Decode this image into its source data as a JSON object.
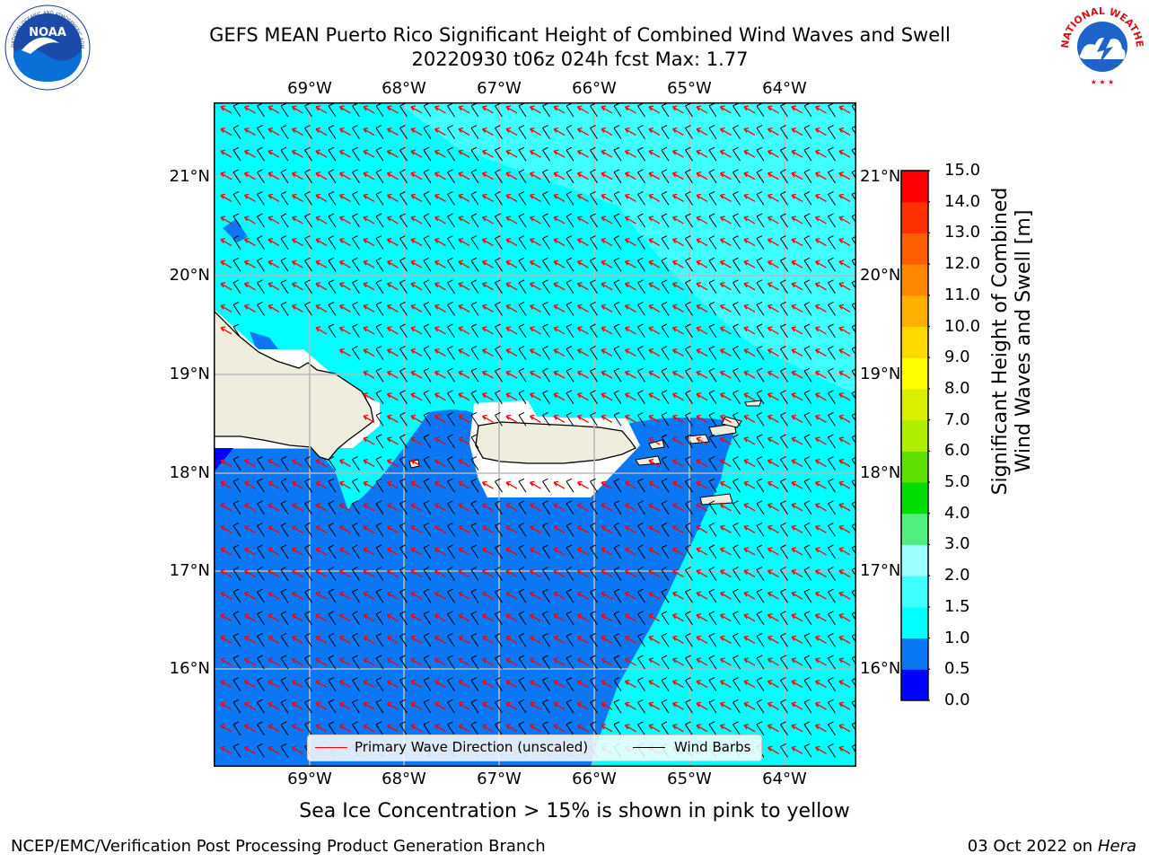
{
  "title_line1": "GEFS MEAN Puerto Rico Significant Height of Combined Wind Waves and Swell",
  "title_line2": "20220930 t06z 024h fcst   Max: 1.77",
  "logos": {
    "left": "noaa-logo",
    "right": "nws-logo",
    "noaa_text": "NOAA",
    "nws_text": "NATIONAL WEATHER SERVICE",
    "noaa_ring_text": "NATIONAL OCEANIC AND ATMOSPHERIC ADMINISTRATION · U.S. DEPARTMENT OF COMMERCE"
  },
  "lon_ticks": [
    "69°W",
    "68°W",
    "67°W",
    "66°W",
    "65°W",
    "64°W"
  ],
  "lat_ticks": [
    "21°N",
    "20°N",
    "19°N",
    "18°N",
    "17°N",
    "16°N"
  ],
  "map_extent": {
    "lon": [
      -70.0,
      -63.25
    ],
    "lat": [
      15.0,
      21.75
    ]
  },
  "colorbar": {
    "title_line1": "Significant Height of Combined",
    "title_line2": "Wind Waves and Swell [m]",
    "levels": [
      "0.0",
      "0.5",
      "1.0",
      "1.5",
      "2.0",
      "3.0",
      "4.0",
      "5.0",
      "6.0",
      "7.0",
      "8.0",
      "9.0",
      "10.0",
      "11.0",
      "12.0",
      "13.0",
      "14.0",
      "15.0"
    ],
    "colors": [
      "#0000ff",
      "#0a78f5",
      "#00ffff",
      "#40ffff",
      "#a0ffff",
      "#50f080",
      "#00dd00",
      "#60e000",
      "#b0ee00",
      "#d8f000",
      "#ffff00",
      "#ffd800",
      "#ffb000",
      "#ff8800",
      "#ff5e00",
      "#ff3000",
      "#ff0000"
    ]
  },
  "legend": {
    "primary": "Primary Wave Direction (unscaled)",
    "barbs": "Wind Barbs",
    "primary_color": "#ff0000",
    "barbs_color": "#000000"
  },
  "footnote": "Sea Ice Concentration > 15% is shown in pink to yellow",
  "credit_left": "NCEP/EMC/Verification Post Processing Product Generation Branch",
  "credit_right_date": "03 Oct 2022 on",
  "credit_right_host": "Hera",
  "colors": {
    "land": "#efedde",
    "sea_low": "#0a78f5",
    "sea_mid": "#00ffff",
    "sea_high": "#40ffff",
    "grid": "#b8b8b8"
  }
}
